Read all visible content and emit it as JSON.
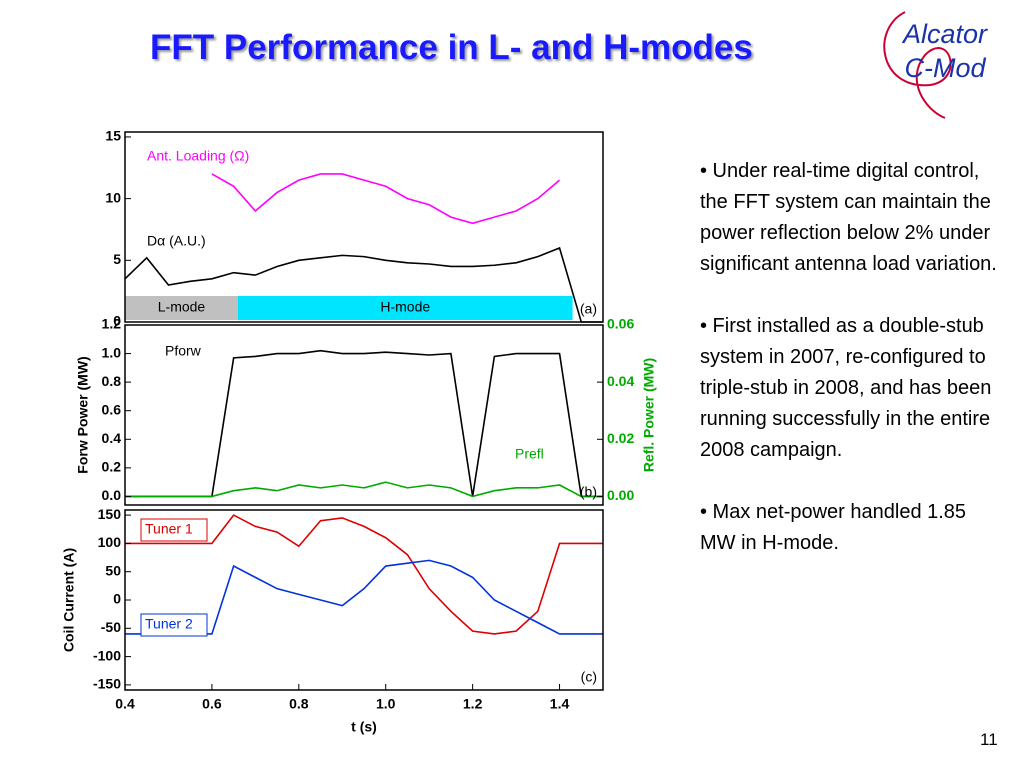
{
  "title": "FFT Performance in L- and H-modes",
  "logo": [
    "Alcator",
    "C-Mod"
  ],
  "bullets": [
    "• Under real-time digital control, the FFT system can maintain the power reflection below 2% under significant antenna load variation.",
    "• First installed as a double-stub system in 2007, re-configured to triple-stub in 2008, and has been running successfully in the entire 2008 campaign.",
    "• Max net-power handled 1.85 MW in H-mode."
  ],
  "page_number": "11",
  "chart_data": [
    {
      "type": "line",
      "annotation": "(a)",
      "x": [
        0.4,
        0.45,
        0.5,
        0.55,
        0.6,
        0.65,
        0.7,
        0.75,
        0.8,
        0.85,
        0.9,
        0.95,
        1.0,
        1.05,
        1.1,
        1.15,
        1.2,
        1.25,
        1.3,
        1.35,
        1.4,
        1.45,
        1.5
      ],
      "xlim": [
        0.4,
        1.5
      ],
      "ylim": [
        0,
        15.4
      ],
      "yticks": [
        0,
        5,
        10,
        15
      ],
      "regions": [
        {
          "label": "L-mode",
          "start": 0.4,
          "end": 0.66,
          "color": "#c0c0c0"
        },
        {
          "label": "H-mode",
          "start": 0.66,
          "end": 1.43,
          "color": "#00e5ff"
        }
      ],
      "series": [
        {
          "name": "Ant. Loading (Ω)",
          "color": "#ff00ff",
          "values": [
            null,
            null,
            null,
            null,
            12,
            11,
            9,
            10.5,
            11.5,
            12,
            12,
            11.5,
            11,
            10,
            9.5,
            8.5,
            8,
            8.5,
            9,
            10,
            11.5,
            null,
            null
          ]
        },
        {
          "name": "Dα (A.U.)",
          "color": "#000000",
          "values": [
            3.5,
            5.2,
            3,
            3.3,
            3.5,
            4,
            3.8,
            4.5,
            5,
            5.2,
            5.4,
            5.3,
            5,
            4.8,
            4.7,
            4.5,
            4.5,
            4.6,
            4.8,
            5.3,
            6,
            0,
            0
          ]
        }
      ]
    },
    {
      "type": "line",
      "annotation": "(b)",
      "ylabel": "Forw Power (MW)",
      "y2label": "Refl. Power (MW)",
      "x": [
        0.4,
        0.45,
        0.5,
        0.55,
        0.6,
        0.65,
        0.7,
        0.75,
        0.8,
        0.85,
        0.9,
        0.95,
        1.0,
        1.05,
        1.1,
        1.15,
        1.2,
        1.25,
        1.3,
        1.35,
        1.4,
        1.45,
        1.5
      ],
      "xlim": [
        0.4,
        1.5
      ],
      "ylim": [
        -0.06,
        1.2
      ],
      "y2lim": [
        -0.003,
        0.06
      ],
      "yticks": [
        {
          "value": 0,
          "label": "0.0"
        },
        0.2,
        0.4,
        0.6,
        0.8,
        {
          "value": 1,
          "label": "1.0"
        },
        1.2
      ],
      "y2ticks": [
        {
          "value": 0,
          "label": "0.00"
        },
        {
          "value": 0.02,
          "label": "0.02"
        },
        {
          "value": 0.04,
          "label": "0.04"
        },
        {
          "value": 0.06,
          "label": "0.06"
        }
      ],
      "series": [
        {
          "name": "Pforw",
          "color": "#000000",
          "values": [
            0,
            0,
            0,
            0,
            0,
            0.97,
            0.98,
            1.0,
            1.0,
            1.02,
            1.0,
            1.0,
            1.01,
            1.0,
            0.99,
            1.0,
            0,
            0.98,
            1.0,
            1.0,
            1.0,
            0,
            0
          ]
        },
        {
          "name": "Prefl",
          "color": "#00aa00",
          "axis": "y2",
          "values": [
            0,
            0,
            0,
            0,
            0,
            0.002,
            0.003,
            0.002,
            0.004,
            0.003,
            0.004,
            0.003,
            0.005,
            0.003,
            0.004,
            0.003,
            0,
            0.002,
            0.003,
            0.003,
            0.004,
            0,
            0
          ]
        }
      ]
    },
    {
      "type": "line",
      "annotation": "(c)",
      "ylabel": "Coil Current (A)",
      "xlabel": "t (s)",
      "x": [
        0.4,
        0.45,
        0.5,
        0.55,
        0.6,
        0.65,
        0.7,
        0.75,
        0.8,
        0.85,
        0.9,
        0.95,
        1.0,
        1.05,
        1.1,
        1.15,
        1.2,
        1.25,
        1.3,
        1.35,
        1.4,
        1.45,
        1.5
      ],
      "xlim": [
        0.4,
        1.5
      ],
      "xticks": [
        0.4,
        0.6,
        0.8,
        {
          "value": 1,
          "label": "1.0"
        },
        1.2,
        1.4
      ],
      "ylim": [
        -159,
        159
      ],
      "yticks": [
        -150,
        -100,
        -50,
        0,
        50,
        100,
        150
      ],
      "series": [
        {
          "name": "Tuner 1",
          "color": "#dd0000",
          "values": [
            100,
            100,
            100,
            100,
            100,
            150,
            130,
            120,
            95,
            140,
            145,
            130,
            110,
            80,
            20,
            -20,
            -55,
            -60,
            -55,
            -20,
            100,
            100,
            100
          ]
        },
        {
          "name": "Tuner 2",
          "color": "#0033dd",
          "values": [
            -60,
            -60,
            -60,
            -60,
            -60,
            60,
            40,
            20,
            10,
            0,
            -10,
            20,
            60,
            65,
            70,
            60,
            40,
            0,
            -20,
            -40,
            -60,
            -60,
            -60
          ]
        }
      ]
    }
  ]
}
